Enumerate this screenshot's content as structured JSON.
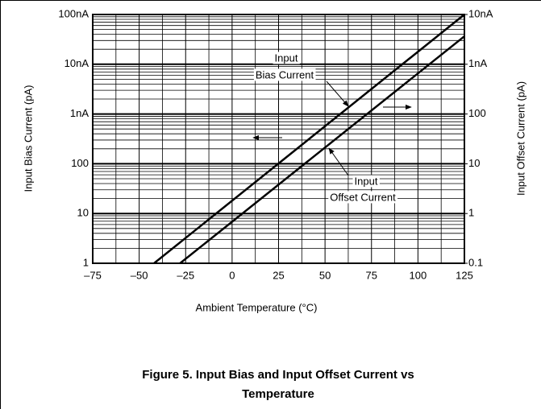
{
  "chart_data": {
    "type": "line",
    "xlabel": "Ambient Temperature (°C)",
    "ylabel": "Input Bias Current (pA)",
    "y2label": "Input Offset Current (pA)",
    "caption": [
      "Figure 5. Input Bias and Input Offset Current vs",
      "Temperature"
    ],
    "xlim": [
      -75,
      125
    ],
    "xticks": [
      {
        "value": -75,
        "label": "–75"
      },
      {
        "value": -50,
        "label": "–50"
      },
      {
        "value": -25,
        "label": "–25"
      },
      0,
      25,
      50,
      75,
      100,
      125
    ],
    "ylim": [
      1,
      100000
    ],
    "yticks": [
      1,
      10,
      100,
      {
        "value": 1000,
        "label": "1nA"
      },
      {
        "value": 10000,
        "label": "10nA"
      },
      {
        "value": 100000,
        "label": "100nA"
      }
    ],
    "y2lim": [
      0.1,
      10000
    ],
    "y2ticks": [
      0.1,
      1,
      10,
      100,
      {
        "value": 1000,
        "label": "1nA"
      },
      {
        "value": 10000,
        "label": "10nA"
      }
    ],
    "log_scale": true,
    "grid": true,
    "series": [
      {
        "name": "Input Bias Current",
        "color": "#000000",
        "x": [
          -42,
          125
        ],
        "values": [
          1,
          100000
        ]
      },
      {
        "name": "Input Offset Current",
        "color": "#000000",
        "axis": "y2",
        "x": [
          -28,
          125
        ],
        "values": [
          0.1,
          3650
        ]
      }
    ],
    "annotations": [
      [
        "Input",
        "Bias Current"
      ],
      [
        "Input",
        "Offset Current"
      ]
    ]
  }
}
